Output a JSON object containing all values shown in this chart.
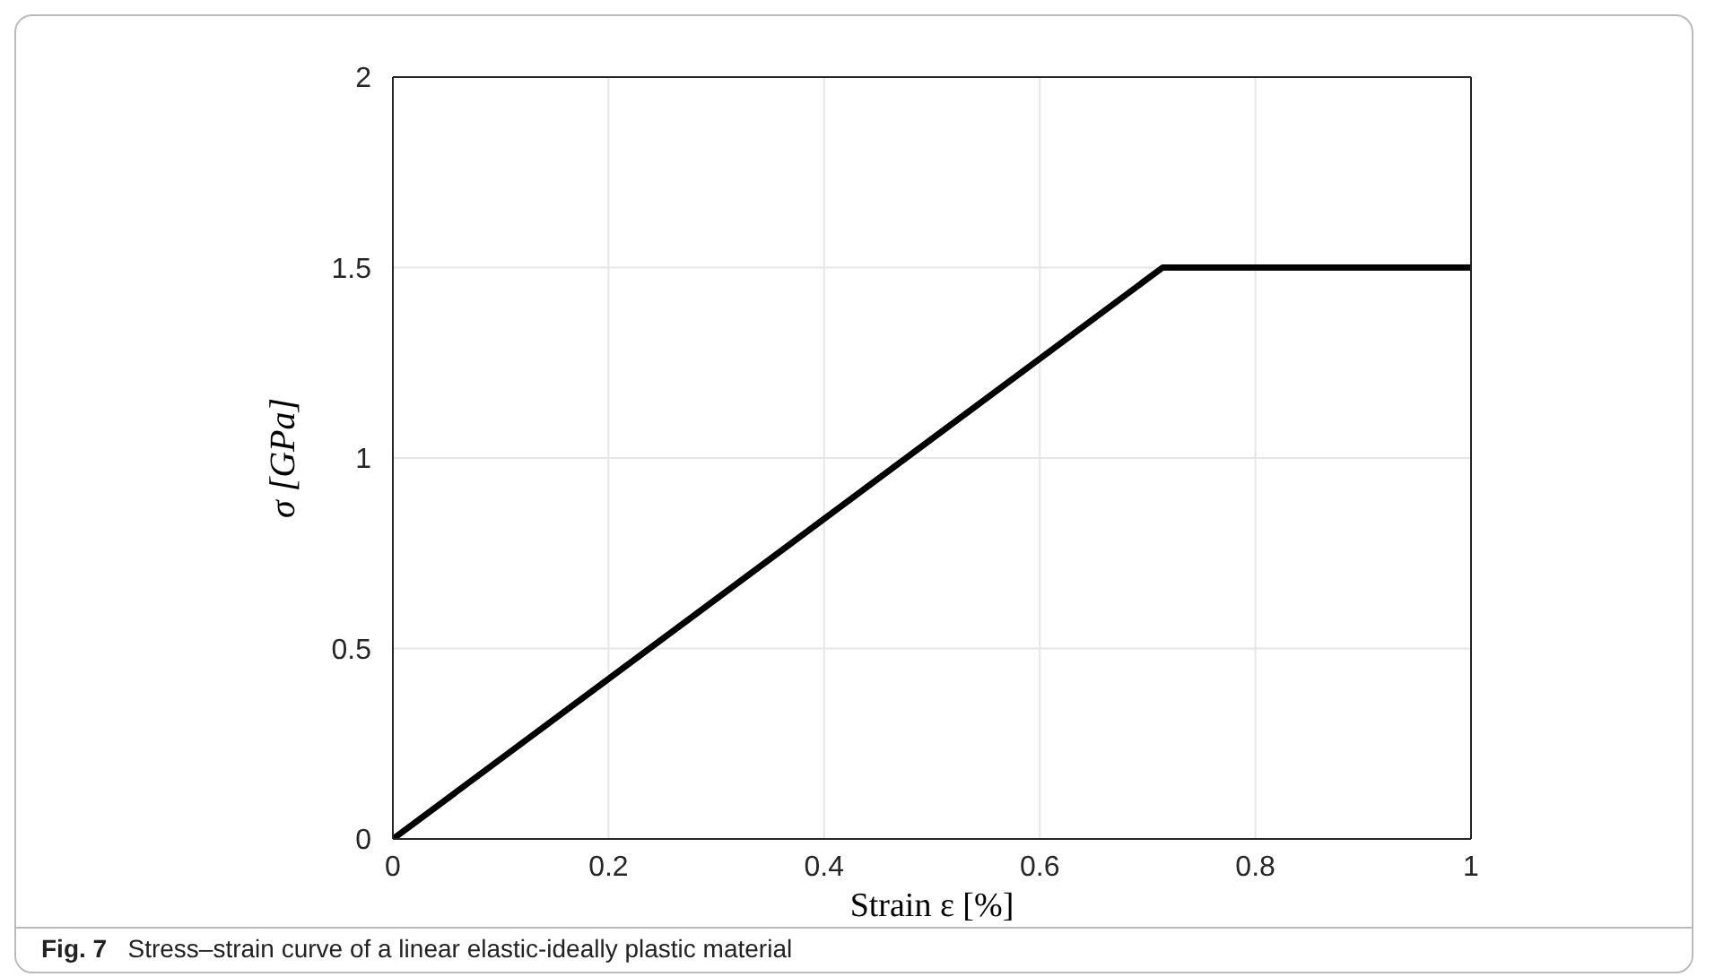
{
  "chart_data": {
    "type": "line",
    "xlabel": "Strain ε [%]",
    "ylabel": "σ [GPa]",
    "x": [
      0,
      0.714,
      1
    ],
    "series": [
      {
        "color": "#000000",
        "values": [
          0,
          1.5,
          1.5
        ]
      }
    ],
    "xlim": [
      0,
      1
    ],
    "xticks": [
      0,
      0.2,
      0.4,
      0.6,
      0.8,
      1
    ],
    "ylim": [
      0,
      2
    ],
    "yticks": [
      0,
      0.5,
      1,
      1.5,
      2
    ],
    "grid": true,
    "legend": false,
    "marker": "none",
    "line_style": "solid",
    "annotations": [
      "Fig. 7  Stress–strain curve of a linear elastic-ideally plastic material"
    ]
  }
}
